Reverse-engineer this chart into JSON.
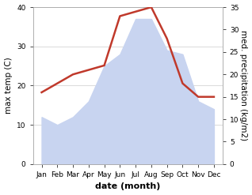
{
  "months": [
    "Jan",
    "Feb",
    "Mar",
    "Apr",
    "May",
    "Jun",
    "Jul",
    "Aug",
    "Sep",
    "Oct",
    "Nov",
    "Dec"
  ],
  "temperature": [
    12,
    10,
    12,
    16,
    25,
    28,
    37,
    37,
    29,
    28,
    16,
    14
  ],
  "precipitation": [
    16,
    18,
    20,
    21,
    22,
    33,
    34,
    35,
    28,
    18,
    15,
    15
  ],
  "temp_fill_color": "#c8d4f0",
  "precip_color": "#c0392b",
  "ylim_left": [
    0,
    40
  ],
  "ylim_right": [
    0,
    35
  ],
  "yticks_left": [
    0,
    10,
    20,
    30,
    40
  ],
  "yticks_right": [
    0,
    5,
    10,
    15,
    20,
    25,
    30,
    35
  ],
  "xlabel": "date (month)",
  "ylabel_left": "max temp (C)",
  "ylabel_right": "med. precipitation (kg/m2)",
  "label_fontsize": 7.5,
  "tick_fontsize": 6.5,
  "xlabel_fontsize": 8,
  "precip_linewidth": 1.8,
  "background_color": "#ffffff",
  "spine_color": "#aaaaaa"
}
